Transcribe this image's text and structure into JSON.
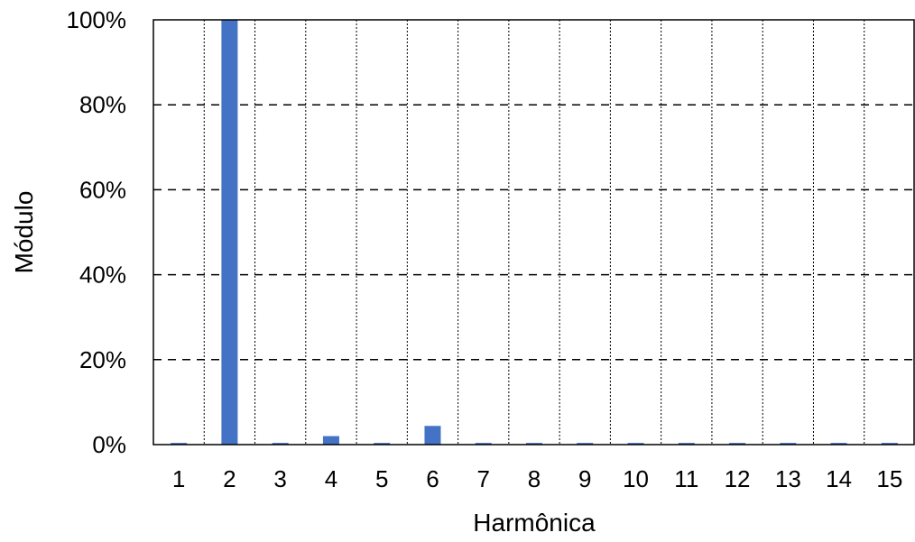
{
  "chart_data": {
    "type": "bar",
    "title": "",
    "xlabel": "Harmônica",
    "ylabel": "Módulo",
    "categories": [
      "1",
      "2",
      "3",
      "4",
      "5",
      "6",
      "7",
      "8",
      "9",
      "10",
      "11",
      "12",
      "13",
      "14",
      "15"
    ],
    "series": [
      {
        "values": [
          0.4,
          100,
          0.4,
          2.0,
          0.4,
          4.4,
          0.4,
          0.4,
          0.4,
          0.4,
          0.4,
          0.4,
          0.4,
          0.4,
          0.4
        ],
        "color": "#4472C4"
      }
    ],
    "ylim": [
      0,
      100
    ],
    "yticks": [
      0,
      20,
      40,
      60,
      80,
      100
    ],
    "ytick_labels": [
      "0%",
      "20%",
      "40%",
      "60%",
      "80%",
      "100%"
    ],
    "grid": true,
    "legend": "none"
  }
}
